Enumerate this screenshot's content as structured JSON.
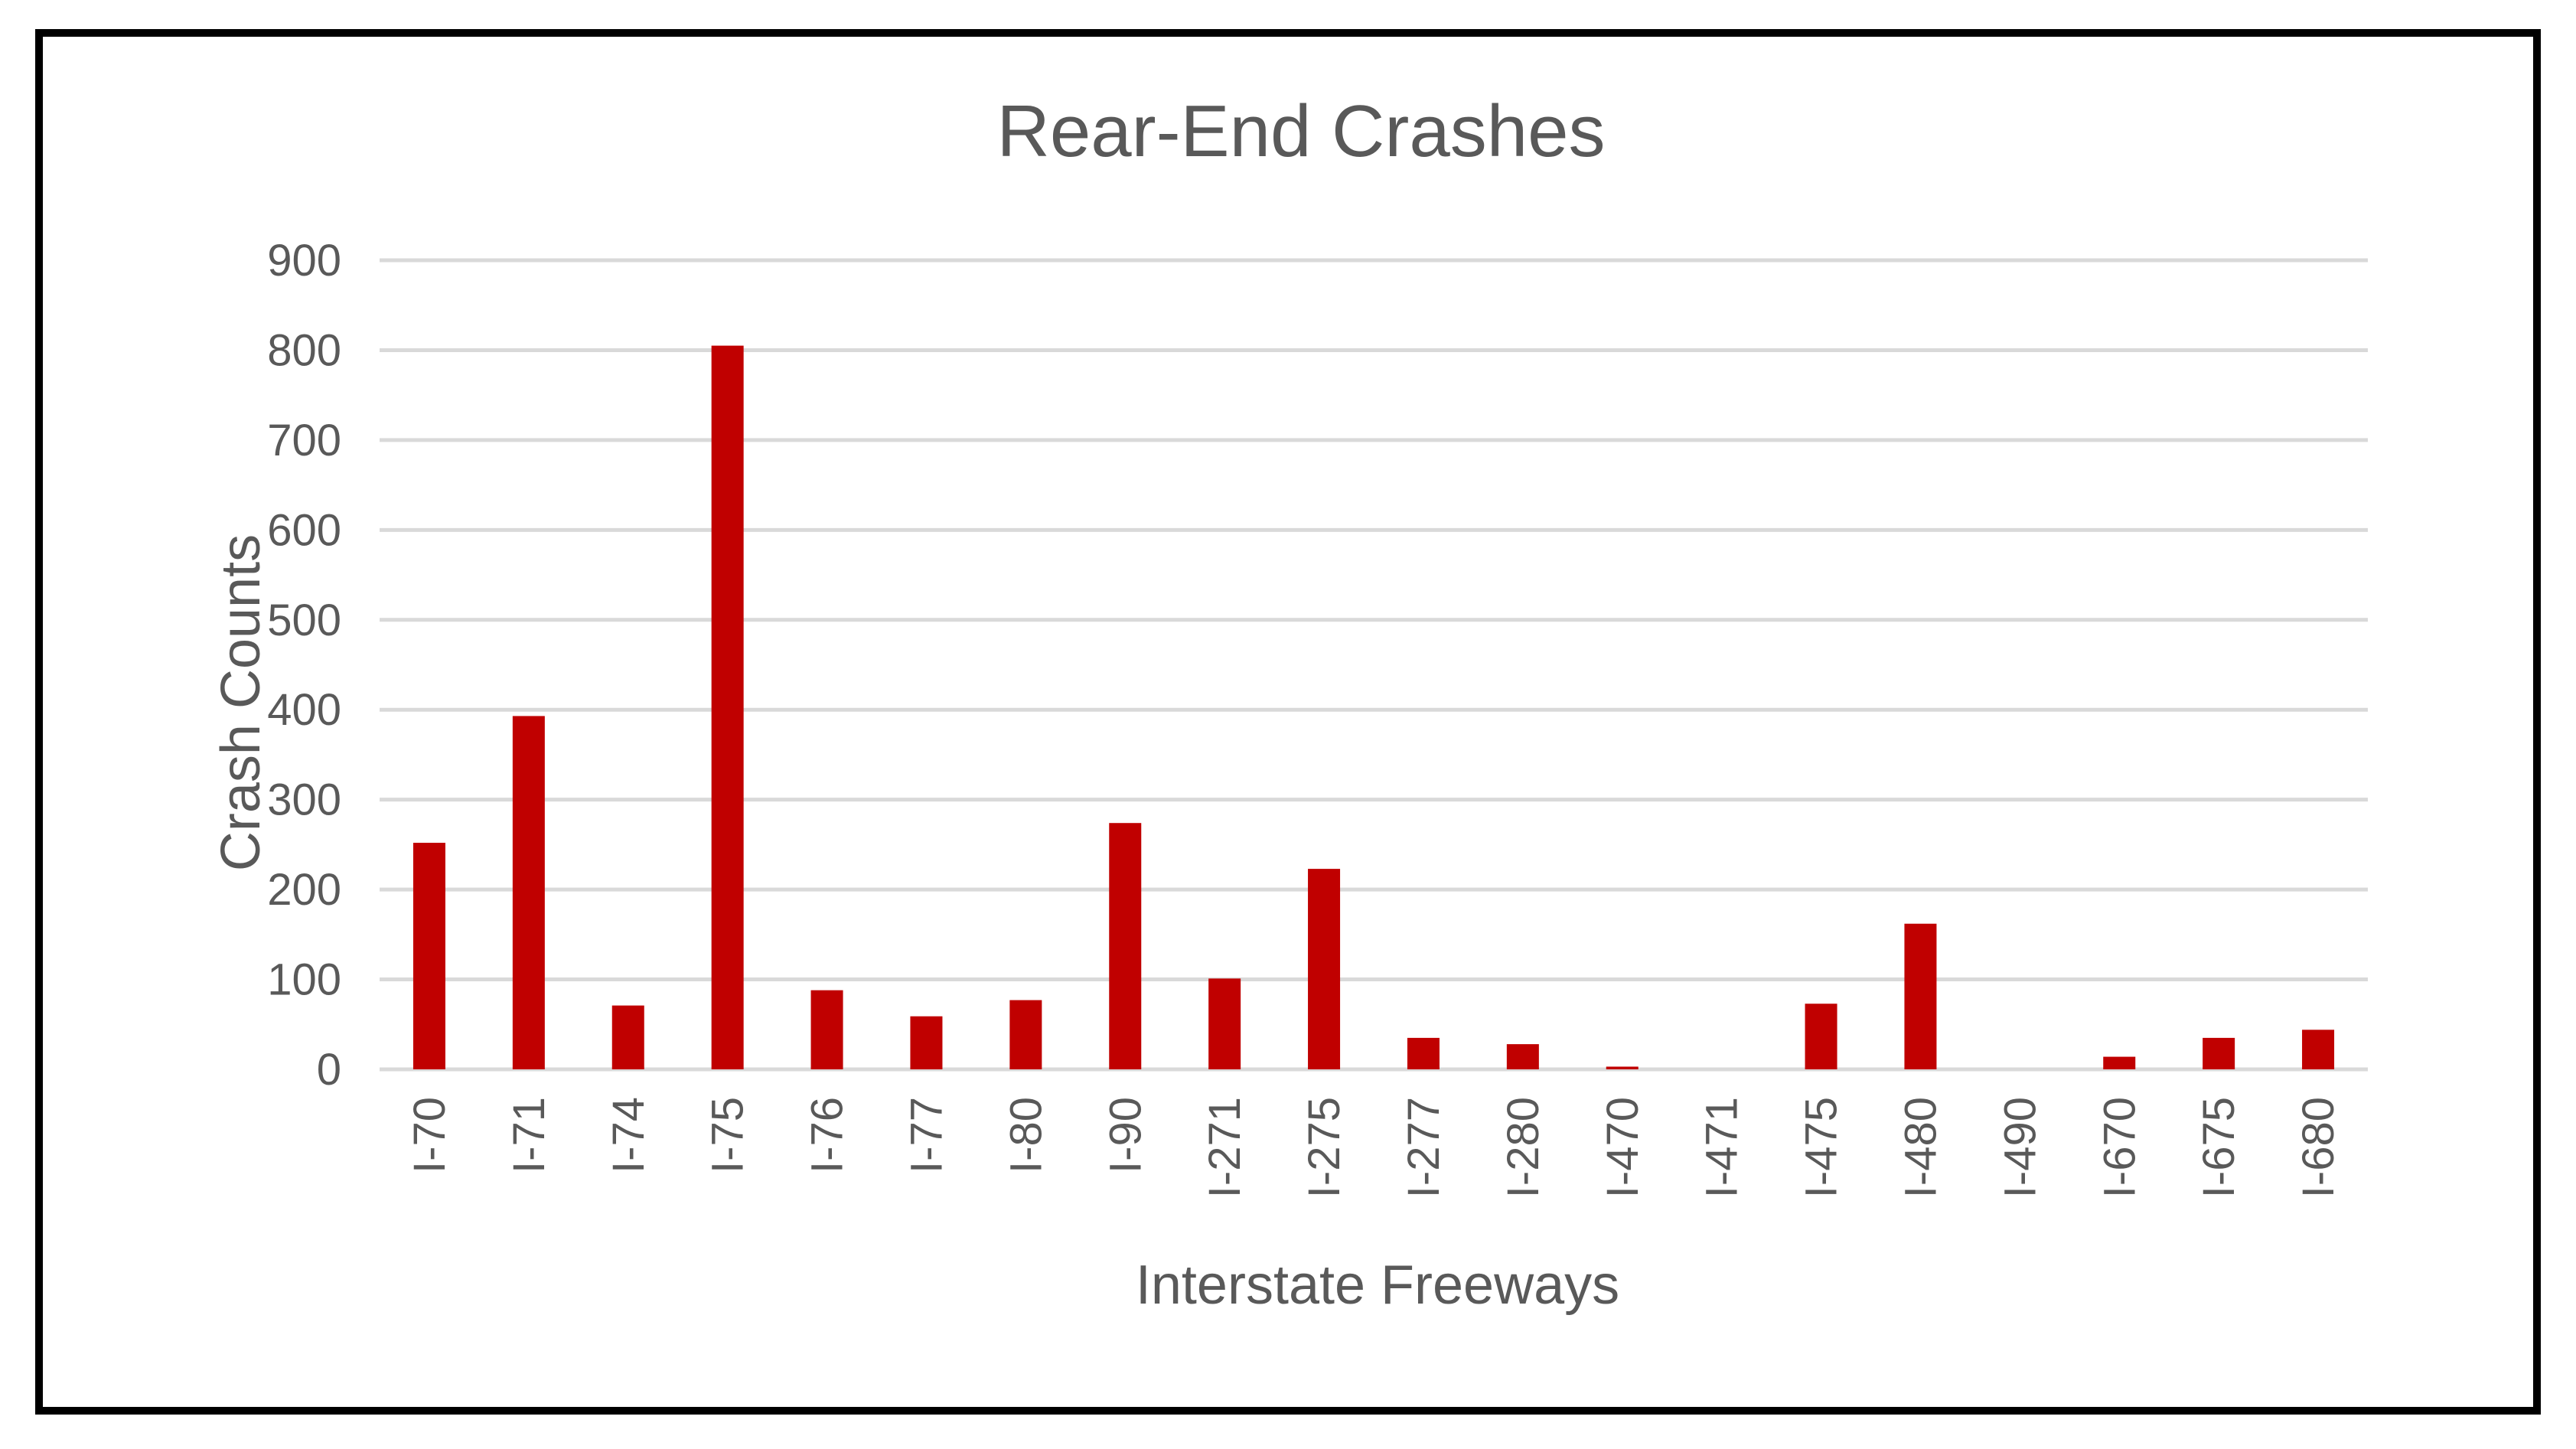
{
  "chart_data": {
    "type": "bar",
    "title": "Rear-End Crashes",
    "xlabel": "Interstate Freeways",
    "ylabel": "Crash Counts",
    "ylim": [
      0,
      900
    ],
    "yticks": [
      0,
      100,
      200,
      300,
      400,
      500,
      600,
      700,
      800,
      900
    ],
    "grid": true,
    "legend": "none",
    "bar_color": "#c00000",
    "categories": [
      "I-70",
      "I-71",
      "I-74",
      "I-75",
      "I-76",
      "I-77",
      "I-80",
      "I-90",
      "I-271",
      "I-275",
      "I-277",
      "I-280",
      "I-470",
      "I-471",
      "I-475",
      "I-480",
      "I-490",
      "I-670",
      "I-675",
      "I-680"
    ],
    "values": [
      252,
      393,
      71,
      805,
      88,
      59,
      77,
      274,
      101,
      223,
      35,
      28,
      3,
      0,
      73,
      162,
      0,
      14,
      35,
      44
    ]
  }
}
